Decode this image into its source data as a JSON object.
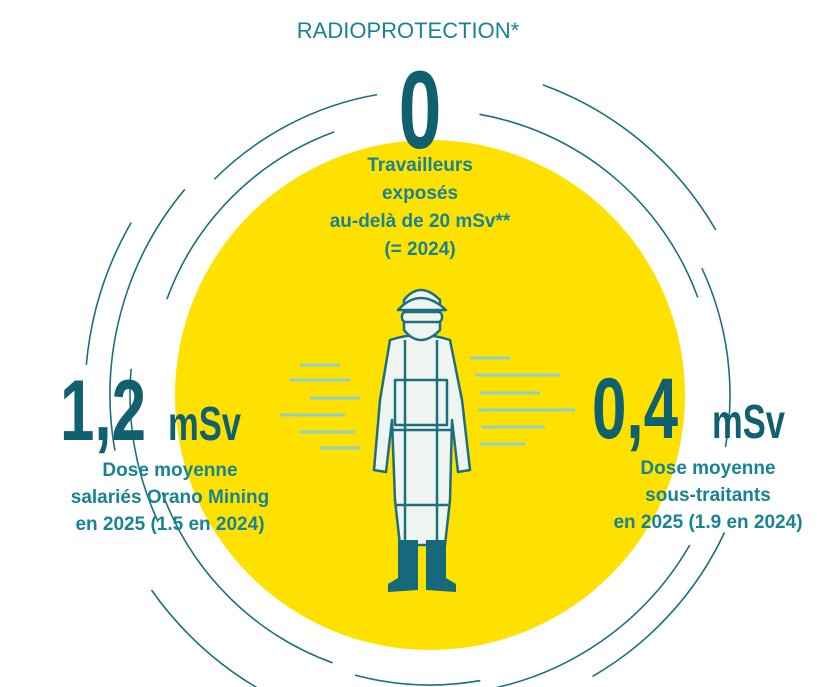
{
  "title": "RADIOPROTECTION*",
  "top": {
    "value": "0",
    "lines": [
      "Travailleurs",
      "exposés",
      "au-delà de 20 mSv**",
      "(= 2024)"
    ]
  },
  "left": {
    "value": "1,2",
    "unit": "mSv",
    "lines": [
      "Dose moyenne",
      "salariés Orano Mining",
      "en 2025 (1.5 en 2024)"
    ]
  },
  "right": {
    "value": "0,4",
    "unit": "mSv",
    "lines": [
      "Dose moyenne",
      "sous-traitants",
      "en 2025 (1.9 en 2024)"
    ]
  }
}
